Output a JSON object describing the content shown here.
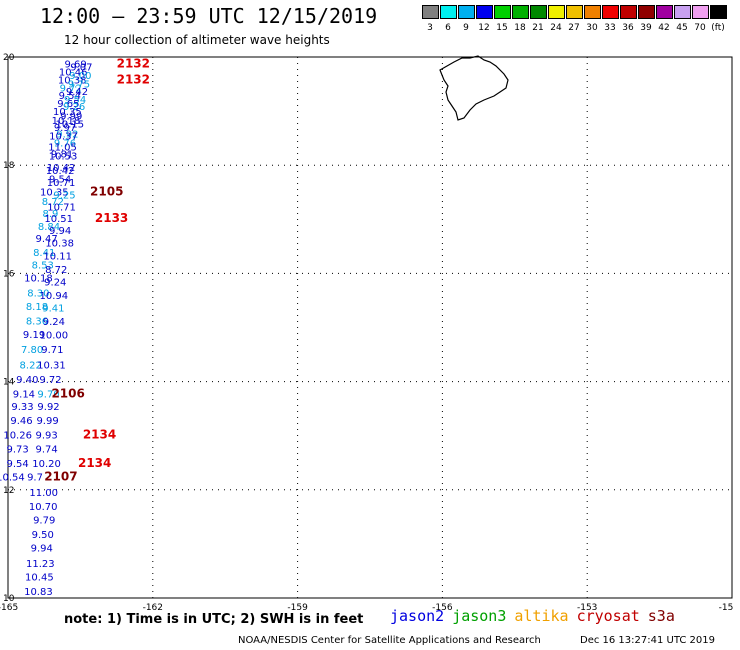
{
  "title": "12:00 – 23:59 UTC 12/15/2019",
  "subtitle": "12 hour collection of altimeter wave heights",
  "colorbar": {
    "colors": [
      "#808080",
      "#00f0f0",
      "#00b0f0",
      "#0000f0",
      "#00d000",
      "#00b000",
      "#008800",
      "#f0f000",
      "#f0c000",
      "#f08000",
      "#f00000",
      "#c00000",
      "#900000",
      "#a000a0",
      "#c8a0f0",
      "#f0a0f0",
      "#000000"
    ],
    "labels": [
      "3",
      "6",
      "9",
      "12",
      "15",
      "18",
      "21",
      "24",
      "27",
      "30",
      "33",
      "36",
      "39",
      "42",
      "45",
      "70",
      "(ft)"
    ]
  },
  "lon_ticks": [
    "-165",
    "-162",
    "-159",
    "-156",
    "-153",
    "-15"
  ],
  "lat_ticks": [
    "20",
    "18",
    "16",
    "14",
    "12",
    "10"
  ],
  "swh_points": [
    {
      "lat": 19.88,
      "lon": -163.6,
      "text": "9.69",
      "color": "#0000c8"
    },
    {
      "lat": 19.82,
      "lon": -163.48,
      "text": "9.07",
      "color": "#0000c8"
    },
    {
      "lat": 19.73,
      "lon": -163.65,
      "text": "10.46",
      "color": "#0000c8"
    },
    {
      "lat": 19.67,
      "lon": -163.5,
      "text": "9.00",
      "color": "#00a0e0"
    },
    {
      "lat": 19.58,
      "lon": -163.67,
      "text": "10.38",
      "color": "#0000c8"
    },
    {
      "lat": 19.51,
      "lon": -163.53,
      "text": "9.75",
      "color": "#00a0e0"
    },
    {
      "lat": 19.44,
      "lon": -163.7,
      "text": "9.72",
      "color": "#00a0e0"
    },
    {
      "lat": 19.37,
      "lon": -163.57,
      "text": "9.42",
      "color": "#0000c8"
    },
    {
      "lat": 19.3,
      "lon": -163.72,
      "text": "9.54",
      "color": "#0000c8"
    },
    {
      "lat": 19.22,
      "lon": -163.61,
      "text": "9.54",
      "color": "#00a0e0"
    },
    {
      "lat": 19.15,
      "lon": -163.75,
      "text": "9.65",
      "color": "#0000c8"
    },
    {
      "lat": 19.09,
      "lon": -163.63,
      "text": "9.26",
      "color": "#00a0e0"
    },
    {
      "lat": 19.0,
      "lon": -163.77,
      "text": "10.35",
      "color": "#0000c8"
    },
    {
      "lat": 18.92,
      "lon": -163.69,
      "text": "9.99",
      "color": "#0000c8"
    },
    {
      "lat": 18.84,
      "lon": -163.8,
      "text": "10.18",
      "color": "#0000c8"
    },
    {
      "lat": 18.77,
      "lon": -163.72,
      "text": "10.15",
      "color": "#0000c8"
    },
    {
      "lat": 18.71,
      "lon": -163.82,
      "text": "9.97",
      "color": "#0000c8"
    },
    {
      "lat": 18.59,
      "lon": -163.77,
      "text": "9.92",
      "color": "#00a0e0"
    },
    {
      "lat": 18.55,
      "lon": -163.85,
      "text": "10.37",
      "color": "#0000c8"
    },
    {
      "lat": 18.42,
      "lon": -163.82,
      "text": "9.76",
      "color": "#00a0e0"
    },
    {
      "lat": 18.35,
      "lon": -163.87,
      "text": "11.05",
      "color": "#0000c8"
    },
    {
      "lat": 18.22,
      "lon": -163.88,
      "text": "9.81",
      "color": "#0000c8"
    },
    {
      "lat": 18.18,
      "lon": -163.86,
      "text": "10.53",
      "color": "#0000c8"
    },
    {
      "lat": 17.97,
      "lon": -163.9,
      "text": "10.42",
      "color": "#0000c8"
    },
    {
      "lat": 17.91,
      "lon": -163.92,
      "text": "10.42",
      "color": "#0000c8"
    },
    {
      "lat": 17.75,
      "lon": -163.92,
      "text": "9.54",
      "color": "#0000c8"
    },
    {
      "lat": 17.69,
      "lon": -163.9,
      "text": "10.71",
      "color": "#0000c8"
    },
    {
      "lat": 17.51,
      "lon": -164.04,
      "text": "10.35",
      "color": "#0000c8"
    },
    {
      "lat": 17.46,
      "lon": -163.83,
      "text": "9.25",
      "color": "#00a0e0"
    },
    {
      "lat": 17.34,
      "lon": -164.07,
      "text": "8.72",
      "color": "#00a0e0"
    },
    {
      "lat": 17.24,
      "lon": -163.89,
      "text": "10.71",
      "color": "#0000c8"
    },
    {
      "lat": 17.12,
      "lon": -164.12,
      "text": "8.9",
      "color": "#00a0e0"
    },
    {
      "lat": 17.02,
      "lon": -163.95,
      "text": "10.51",
      "color": "#0000c8"
    },
    {
      "lat": 16.88,
      "lon": -164.15,
      "text": "8.84",
      "color": "#00a0e0"
    },
    {
      "lat": 16.8,
      "lon": -163.92,
      "text": "9.94",
      "color": "#0000c8"
    },
    {
      "lat": 16.65,
      "lon": -164.2,
      "text": "9.47",
      "color": "#0000c8"
    },
    {
      "lat": 16.57,
      "lon": -163.93,
      "text": "10.38",
      "color": "#0000c8"
    },
    {
      "lat": 16.4,
      "lon": -164.25,
      "text": "8.41",
      "color": "#00a0e0"
    },
    {
      "lat": 16.33,
      "lon": -163.97,
      "text": "10.11",
      "color": "#0000c8"
    },
    {
      "lat": 16.16,
      "lon": -164.28,
      "text": "8.53",
      "color": "#00a0e0"
    },
    {
      "lat": 16.08,
      "lon": -164.0,
      "text": "8.72",
      "color": "#0000c8"
    },
    {
      "lat": 15.92,
      "lon": -164.37,
      "text": "10.18",
      "color": "#0000c8"
    },
    {
      "lat": 15.85,
      "lon": -164.02,
      "text": "9.24",
      "color": "#0000c8"
    },
    {
      "lat": 15.65,
      "lon": -164.37,
      "text": "8.30",
      "color": "#00a0e0"
    },
    {
      "lat": 15.6,
      "lon": -164.05,
      "text": "10.94",
      "color": "#0000c8"
    },
    {
      "lat": 15.4,
      "lon": -164.4,
      "text": "8.18",
      "color": "#00a0e0"
    },
    {
      "lat": 15.37,
      "lon": -164.06,
      "text": "9.41",
      "color": "#00a0e0"
    },
    {
      "lat": 15.13,
      "lon": -164.4,
      "text": "8.36",
      "color": "#00a0e0"
    },
    {
      "lat": 15.12,
      "lon": -164.05,
      "text": "9.24",
      "color": "#0000c8"
    },
    {
      "lat": 14.88,
      "lon": -164.46,
      "text": "9.19",
      "color": "#0000c8"
    },
    {
      "lat": 14.87,
      "lon": -164.05,
      "text": "10.00",
      "color": "#0000c8"
    },
    {
      "lat": 14.6,
      "lon": -164.5,
      "text": "7.80",
      "color": "#00a0e0"
    },
    {
      "lat": 14.6,
      "lon": -164.08,
      "text": "9.71",
      "color": "#0000c8"
    },
    {
      "lat": 14.32,
      "lon": -164.53,
      "text": "8.22",
      "color": "#00a0e0"
    },
    {
      "lat": 14.32,
      "lon": -164.1,
      "text": "10.31",
      "color": "#0000c8"
    },
    {
      "lat": 14.05,
      "lon": -164.6,
      "text": "9.40",
      "color": "#0000c8"
    },
    {
      "lat": 14.05,
      "lon": -164.12,
      "text": "9.72",
      "color": "#0000c8"
    },
    {
      "lat": 13.78,
      "lon": -164.67,
      "text": "9.14",
      "color": "#0000c8"
    },
    {
      "lat": 13.78,
      "lon": -164.16,
      "text": "9.70",
      "color": "#00a0e0"
    },
    {
      "lat": 13.55,
      "lon": -164.7,
      "text": "9.33",
      "color": "#0000c8"
    },
    {
      "lat": 13.55,
      "lon": -164.16,
      "text": "9.92",
      "color": "#0000c8"
    },
    {
      "lat": 13.29,
      "lon": -164.72,
      "text": "9.46",
      "color": "#0000c8"
    },
    {
      "lat": 13.29,
      "lon": -164.18,
      "text": "9.99",
      "color": "#0000c8"
    },
    {
      "lat": 13.02,
      "lon": -164.8,
      "text": "10.26",
      "color": "#0000c8"
    },
    {
      "lat": 13.02,
      "lon": -164.2,
      "text": "9.93",
      "color": "#0000c8"
    },
    {
      "lat": 12.76,
      "lon": -164.8,
      "text": "9.73",
      "color": "#0000c8"
    },
    {
      "lat": 12.76,
      "lon": -164.2,
      "text": "9.74",
      "color": "#0000c8"
    },
    {
      "lat": 12.5,
      "lon": -164.8,
      "text": "9.54",
      "color": "#0000c8"
    },
    {
      "lat": 12.5,
      "lon": -164.2,
      "text": "10.20",
      "color": "#0000c8"
    },
    {
      "lat": 12.25,
      "lon": -164.95,
      "text": "10.54",
      "color": "#0000c8"
    },
    {
      "lat": 12.25,
      "lon": -164.44,
      "text": "9.7",
      "color": "#0000c8"
    },
    {
      "lat": 11.96,
      "lon": -164.26,
      "text": "11.00",
      "color": "#0000c8"
    },
    {
      "lat": 11.7,
      "lon": -164.27,
      "text": "10.70",
      "color": "#0000c8"
    },
    {
      "lat": 11.45,
      "lon": -164.25,
      "text": "9.79",
      "color": "#0000c8"
    },
    {
      "lat": 11.18,
      "lon": -164.28,
      "text": "9.50",
      "color": "#0000c8"
    },
    {
      "lat": 10.93,
      "lon": -164.3,
      "text": "9.94",
      "color": "#0000c8"
    },
    {
      "lat": 10.65,
      "lon": -164.33,
      "text": "11.23",
      "color": "#0000c8"
    },
    {
      "lat": 10.4,
      "lon": -164.35,
      "text": "10.45",
      "color": "#0000c8"
    },
    {
      "lat": 10.13,
      "lon": -164.37,
      "text": "10.83",
      "color": "#0000c8"
    }
  ],
  "cycle_labels": [
    {
      "lat": 19.88,
      "lon": -162.75,
      "text": "2132",
      "color": "#e00000"
    },
    {
      "lat": 19.58,
      "lon": -162.75,
      "text": "2132",
      "color": "#e00000"
    },
    {
      "lat": 17.51,
      "lon": -163.3,
      "text": "2105",
      "color": "#800000"
    },
    {
      "lat": 17.02,
      "lon": -163.2,
      "text": "2133",
      "color": "#e00000"
    },
    {
      "lat": 13.78,
      "lon": -164.1,
      "text": "2106",
      "color": "#800000"
    },
    {
      "lat": 13.02,
      "lon": -163.45,
      "text": "2134",
      "color": "#e00000"
    },
    {
      "lat": 12.5,
      "lon": -163.55,
      "text": "2134",
      "color": "#e00000"
    },
    {
      "lat": 12.25,
      "lon": -164.25,
      "text": "2107",
      "color": "#800000"
    }
  ],
  "note": "note: 1) Time is in UTC; 2) SWH is in feet",
  "legend": [
    {
      "name": "jason2",
      "color": "#0000e0"
    },
    {
      "name": "jason3",
      "color": "#00a000"
    },
    {
      "name": "altika",
      "color": "#f0a000"
    },
    {
      "name": "cryosat",
      "color": "#c00000"
    },
    {
      "name": "s3a",
      "color": "#800000"
    }
  ],
  "footer_left": "NOAA/NESDIS Center for Satellite Applications and Research",
  "footer_right": "Dec 16 13:27:41 UTC 2019"
}
